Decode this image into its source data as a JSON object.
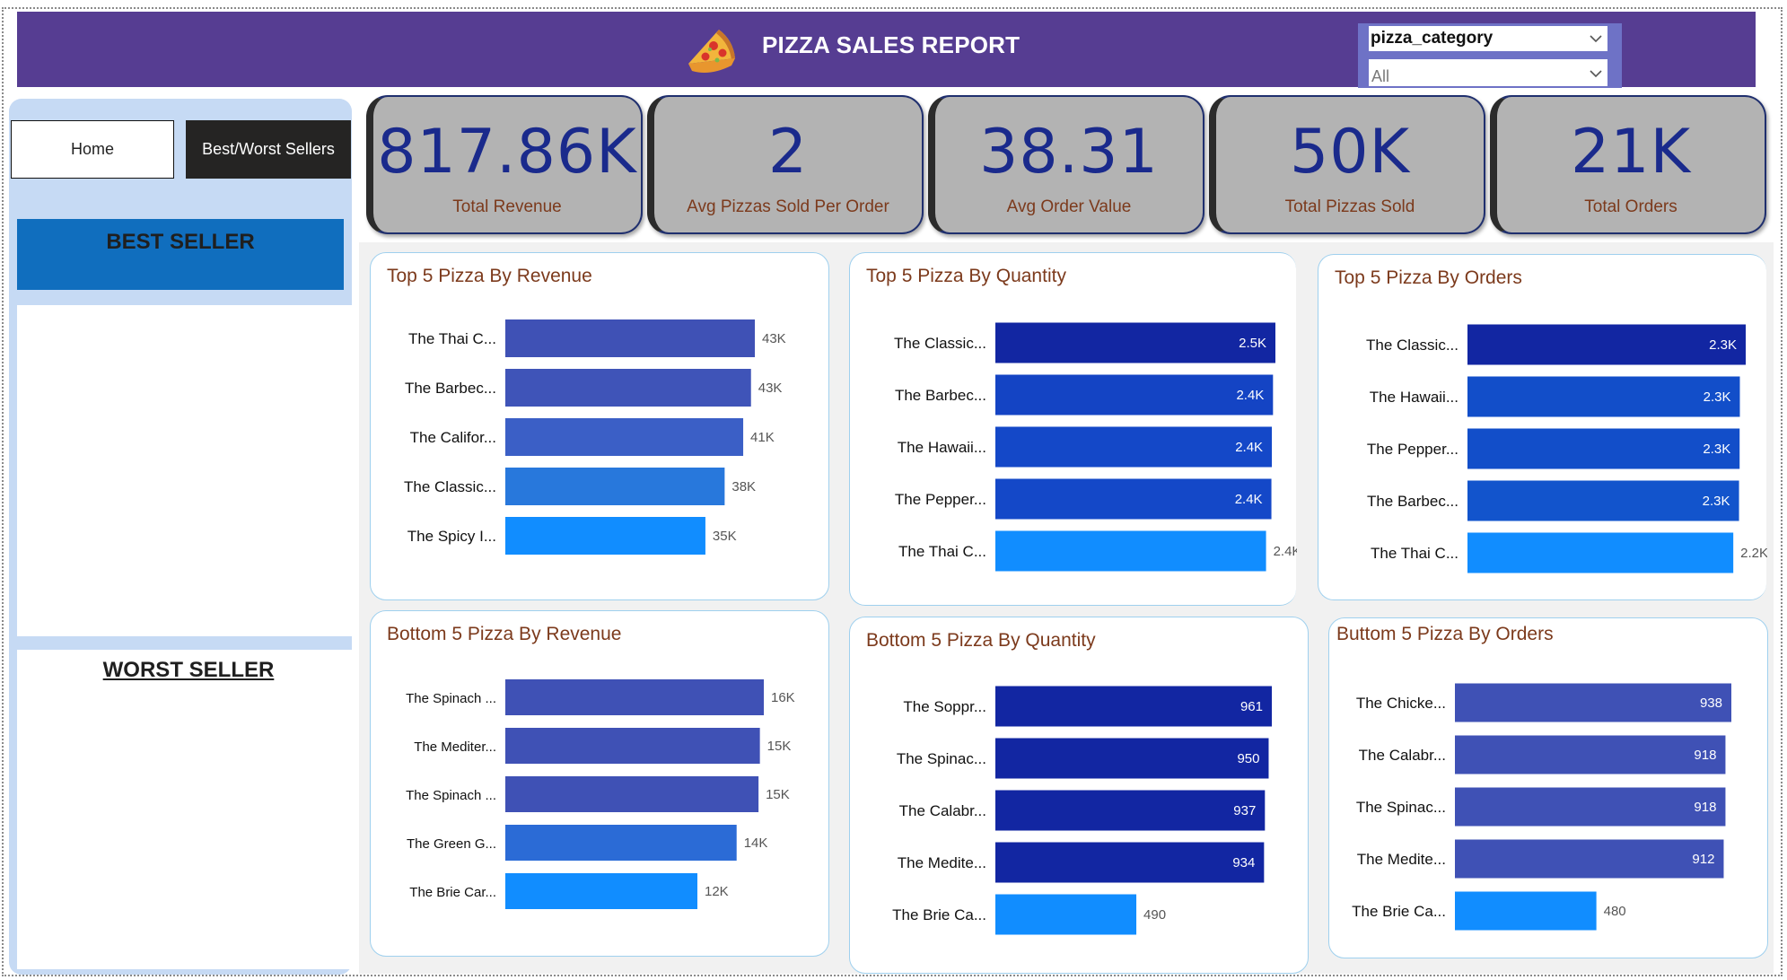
{
  "header": {
    "title": "PIZZA SALES REPORT",
    "icon": "pizza-slice-icon",
    "background": "#563d92"
  },
  "slicer": {
    "label": "pizza_category",
    "value": "All"
  },
  "nav": {
    "home_label": "Home",
    "best_worst_label": "Best/Worst Sellers"
  },
  "left_panel": {
    "best_label": "BEST SELLER",
    "worst_label": "WORST SELLER"
  },
  "kpis": [
    {
      "value": "817.86K",
      "label": "Total Revenue"
    },
    {
      "value": "2",
      "label": "Avg Pizzas Sold Per Order"
    },
    {
      "value": "38.31",
      "label": "Avg Order Value"
    },
    {
      "value": "50K",
      "label": "Total Pizzas Sold"
    },
    {
      "value": "21K",
      "label": "Total Orders"
    }
  ],
  "chart_data": [
    {
      "id": "top-revenue",
      "type": "bar",
      "title": "Top 5 Pizza By Revenue",
      "categories": [
        "The Thai C...",
        "The Barbec...",
        "The Califor...",
        "The Classic...",
        "The Spicy I..."
      ],
      "values": [
        43434,
        42768,
        41410,
        38180,
        34831
      ],
      "value_labels": [
        "43K",
        "43K",
        "41K",
        "38K",
        "35K"
      ],
      "colors": [
        "#3f51b5",
        "#3f54b8",
        "#3b5fc6",
        "#2878dc",
        "#118dff"
      ]
    },
    {
      "id": "top-quantity",
      "type": "bar",
      "title": "Top 5 Pizza By Quantity",
      "categories": [
        "The Classic...",
        "The Barbec...",
        "The Hawaii...",
        "The Pepper...",
        "The Thai C..."
      ],
      "values": [
        2453,
        2432,
        2422,
        2418,
        2371
      ],
      "value_labels": [
        "2.5K",
        "2.4K",
        "2.4K",
        "2.4K",
        "2.4K"
      ],
      "colors": [
        "#1226a2",
        "#1444c4",
        "#1448c8",
        "#1448c8",
        "#118dff"
      ]
    },
    {
      "id": "top-orders",
      "type": "bar",
      "title": "Top 5 Pizza By Orders",
      "categories": [
        "The Classic...",
        "The Hawaii...",
        "The Pepper...",
        "The Barbec...",
        "The Thai C..."
      ],
      "values": [
        2329,
        2280,
        2278,
        2273,
        2225
      ],
      "value_labels": [
        "2.3K",
        "2.3K",
        "2.3K",
        "2.3K",
        "2.2K"
      ],
      "colors": [
        "#1226a2",
        "#124ec9",
        "#124ec9",
        "#1254cc",
        "#118dff"
      ]
    },
    {
      "id": "bottom-revenue",
      "type": "bar",
      "title": "Bottom 5 Pizza By Revenue",
      "categories": [
        "The Spinach ...",
        "The Mediter...",
        "The Spinach ...",
        "The Green G...",
        "The Brie Car..."
      ],
      "values": [
        15596,
        15360,
        15277,
        13956,
        11588
      ],
      "value_labels": [
        "16K",
        "15K",
        "15K",
        "14K",
        "12K"
      ],
      "colors": [
        "#3f51b5",
        "#3f51b5",
        "#3f51b5",
        "#2b6bd6",
        "#118dff"
      ]
    },
    {
      "id": "bottom-quantity",
      "type": "bar",
      "title": "Bottom 5 Pizza By Quantity",
      "categories": [
        "The Soppr...",
        "The Spinac...",
        "The Calabr...",
        "The Medite...",
        "The Brie Ca..."
      ],
      "values": [
        961,
        950,
        937,
        934,
        490
      ],
      "value_labels": [
        "961",
        "950",
        "937",
        "934",
        "490"
      ],
      "colors": [
        "#1226a2",
        "#1226a2",
        "#1226a2",
        "#1226a2",
        "#118dff"
      ]
    },
    {
      "id": "bottom-orders",
      "type": "bar",
      "title": "Buttom 5 Pizza By Orders",
      "categories": [
        "The Chicke...",
        "The Calabr...",
        "The Spinac...",
        "The Medite...",
        "The Brie Ca..."
      ],
      "values": [
        938,
        918,
        918,
        912,
        480
      ],
      "value_labels": [
        "938",
        "918",
        "918",
        "912",
        "480"
      ],
      "colors": [
        "#3f51b5",
        "#3f51b5",
        "#3f51b5",
        "#3f51b5",
        "#118dff"
      ]
    }
  ]
}
